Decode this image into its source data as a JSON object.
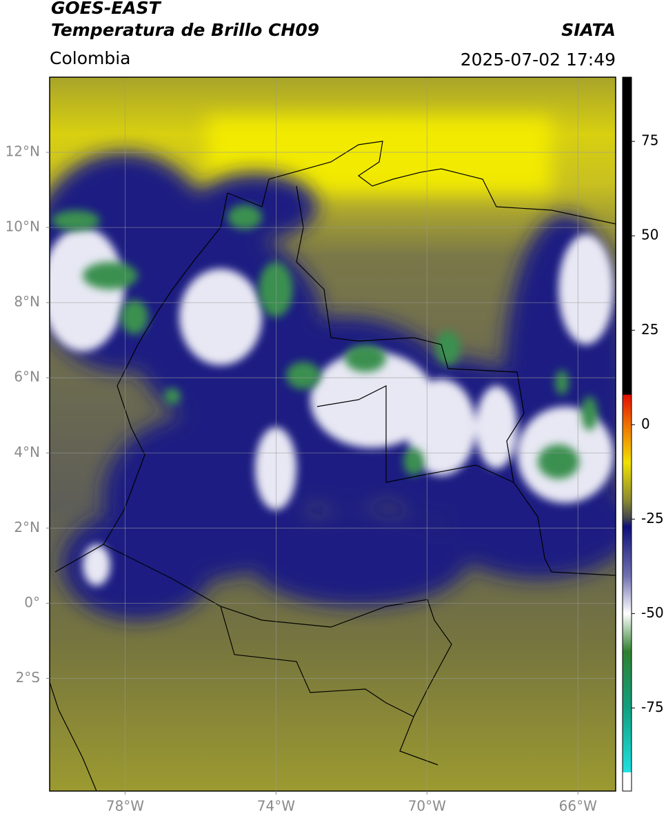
{
  "header": {
    "title": "GOES-EAST",
    "subtitle": "Temperatura de Brillo CH09",
    "source": "SIATA",
    "region": "Colombia",
    "datetime": "2025-07-02 17:49"
  },
  "map": {
    "lonlim": [
      -80,
      -65
    ],
    "latlim": [
      -5,
      14
    ],
    "lonticks": [
      {
        "value": -78,
        "label": "78°W"
      },
      {
        "value": -74,
        "label": "74°W"
      },
      {
        "value": -70,
        "label": "70°W"
      },
      {
        "value": -66,
        "label": "66°W"
      }
    ],
    "latticks": [
      {
        "value": 12,
        "label": "12°N"
      },
      {
        "value": 10,
        "label": "10°N"
      },
      {
        "value": 8,
        "label": "8°N"
      },
      {
        "value": 6,
        "label": "6°N"
      },
      {
        "value": 4,
        "label": "4°N"
      },
      {
        "value": 2,
        "label": "2°N"
      },
      {
        "value": 0,
        "label": "0°"
      },
      {
        "value": -2,
        "label": "2°S"
      }
    ]
  },
  "colorbar": {
    "lim": [
      -97,
      92
    ],
    "ticks": [
      75,
      50,
      25,
      0,
      -25,
      -50,
      -75
    ],
    "stops": [
      {
        "value": 92,
        "color": "#000000"
      },
      {
        "value": 8,
        "color": "#000000"
      },
      {
        "value": 7.9,
        "color": "#e01000"
      },
      {
        "value": 0,
        "color": "#f07000"
      },
      {
        "value": -10,
        "color": "#f0e000"
      },
      {
        "value": -20,
        "color": "#8a8a30"
      },
      {
        "value": -25,
        "color": "#404050"
      },
      {
        "value": -27,
        "color": "#10107a"
      },
      {
        "value": -40,
        "color": "#7070b0"
      },
      {
        "value": -50,
        "color": "#ffffff"
      },
      {
        "value": -60,
        "color": "#308030"
      },
      {
        "value": -75,
        "color": "#10a080"
      },
      {
        "value": -92,
        "color": "#20e0e0"
      },
      {
        "value": -92.1,
        "color": "#ffffff"
      },
      {
        "value": -97,
        "color": "#ffffff"
      }
    ]
  }
}
